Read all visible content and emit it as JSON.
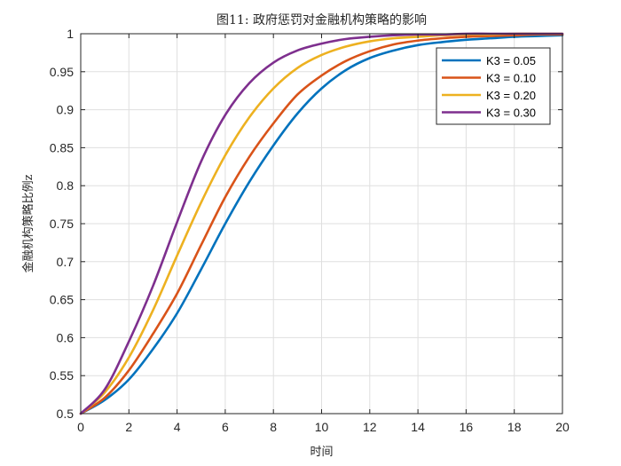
{
  "chart_data": {
    "type": "line",
    "title": "图11: 政府惩罚对金融机构策略的影响",
    "xlabel": "时间",
    "ylabel": "金融机构策略比例z",
    "xlim": [
      0,
      20
    ],
    "ylim": [
      0.5,
      1
    ],
    "xticks": [
      "0",
      "2",
      "4",
      "6",
      "8",
      "10",
      "12",
      "14",
      "16",
      "18",
      "20"
    ],
    "yticks": [
      "0.5",
      "0.55",
      "0.6",
      "0.65",
      "0.7",
      "0.75",
      "0.8",
      "0.85",
      "0.9",
      "0.95",
      "1"
    ],
    "grid": true,
    "legend_position": "top-right",
    "x": [
      0,
      1,
      2,
      3,
      4,
      5,
      6,
      7,
      8,
      9,
      10,
      11,
      12,
      13,
      14,
      15,
      16,
      17,
      18,
      19,
      20
    ],
    "series": [
      {
        "name": "K3 = 0.05",
        "color": "#0072BD",
        "values": [
          0.5,
          0.518,
          0.545,
          0.585,
          0.632,
          0.69,
          0.75,
          0.805,
          0.853,
          0.895,
          0.928,
          0.952,
          0.968,
          0.978,
          0.985,
          0.989,
          0.992,
          0.994,
          0.996,
          0.997,
          0.998
        ]
      },
      {
        "name": "K3 = 0.10",
        "color": "#D95319",
        "values": [
          0.5,
          0.521,
          0.557,
          0.605,
          0.658,
          0.722,
          0.785,
          0.838,
          0.882,
          0.92,
          0.945,
          0.964,
          0.977,
          0.986,
          0.991,
          0.994,
          0.996,
          0.997,
          0.998,
          0.999,
          0.999
        ]
      },
      {
        "name": "K3 = 0.20",
        "color": "#EDB120",
        "values": [
          0.5,
          0.528,
          0.574,
          0.636,
          0.708,
          0.778,
          0.84,
          0.89,
          0.928,
          0.955,
          0.972,
          0.983,
          0.99,
          0.994,
          0.996,
          0.998,
          0.999,
          0.999,
          1.0,
          1.0,
          1.0
        ]
      },
      {
        "name": "K3 = 0.30",
        "color": "#7E2F8E",
        "values": [
          0.5,
          0.532,
          0.595,
          0.668,
          0.752,
          0.832,
          0.893,
          0.935,
          0.962,
          0.978,
          0.987,
          0.993,
          0.996,
          0.998,
          0.999,
          0.999,
          1.0,
          1.0,
          1.0,
          1.0,
          1.0
        ]
      }
    ]
  }
}
